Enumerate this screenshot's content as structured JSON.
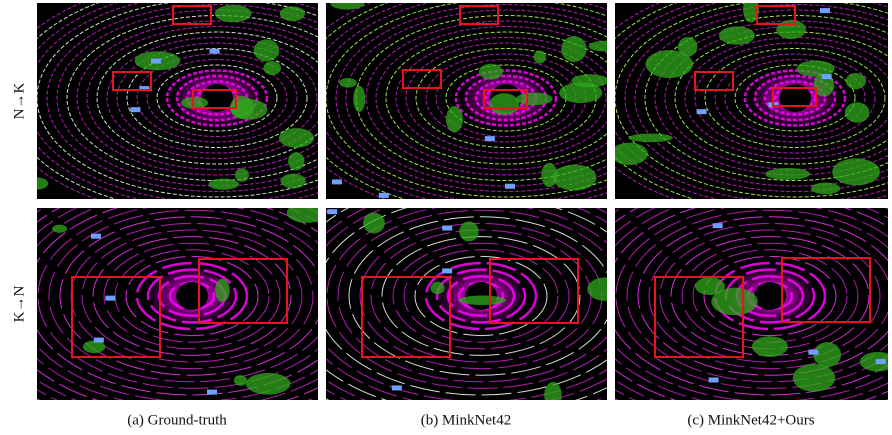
{
  "row_labels": [
    "N→K",
    "K→N"
  ],
  "captions": [
    "(a) Ground-truth",
    "(b) MinkNet42",
    "(c) MinkNet42+Ours"
  ]
}
